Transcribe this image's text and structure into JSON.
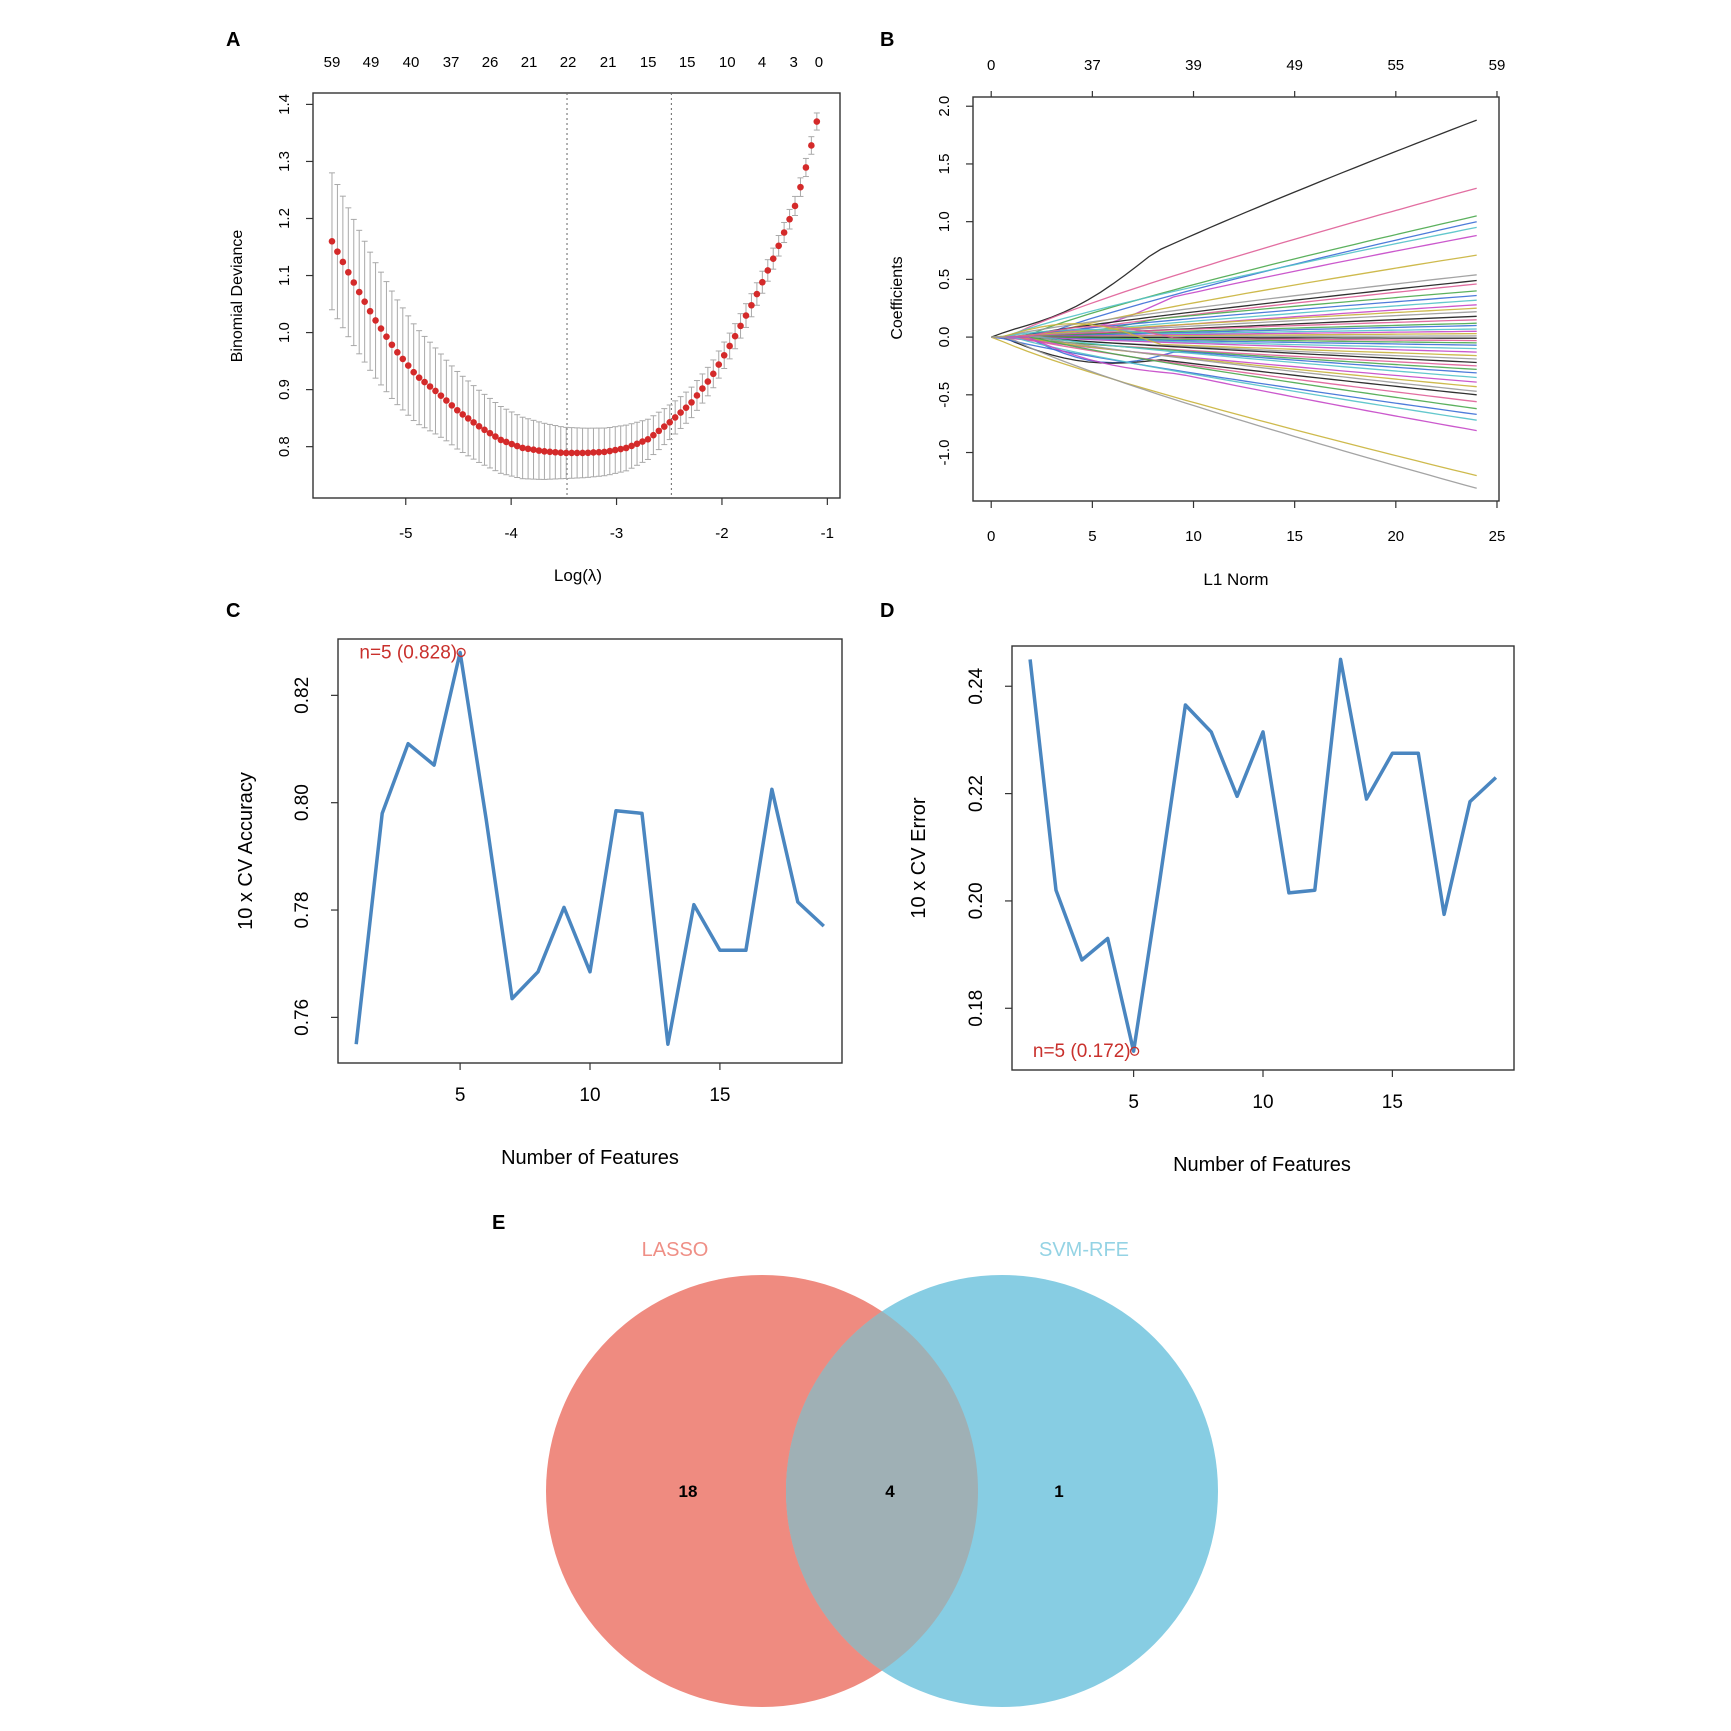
{
  "panel_labels": {
    "A": "A",
    "B": "B",
    "C": "C",
    "D": "D",
    "E": "E"
  },
  "colors": {
    "red_points": "#d42a2a",
    "errbar": "#a9a9a9",
    "blue_line": "#4a86c0",
    "annot_red": "#c9302c",
    "lasso_fill": "#ef8b80",
    "svm_fill": "#87cde3",
    "overlap_fill": "#9fb0b5",
    "lasso_text": "#ef8f86",
    "svm_text": "#94d3e4"
  },
  "chart_data": [
    {
      "id": "A",
      "type": "scatter",
      "title": "",
      "xlabel": "Log(λ)",
      "ylabel": "Binomial Deviance",
      "xlim": [
        -5.88,
        -0.88
      ],
      "ylim": [
        0.71,
        1.42
      ],
      "xticks": [
        -5,
        -4,
        -3,
        -2,
        -1
      ],
      "xtick_labels": [
        "-5",
        "-4",
        "-3",
        "-2",
        "-1"
      ],
      "yticks": [
        0.8,
        0.9,
        1.0,
        1.1,
        1.2,
        1.3,
        1.4
      ],
      "ytick_labels": [
        "0.8",
        "0.9",
        "1.0",
        "1.1",
        "1.2",
        "1.3",
        "1.4"
      ],
      "top_ticks": [
        -5.7,
        -5.33,
        -4.95,
        -4.57,
        -4.2,
        -3.83,
        -3.46,
        -3.08,
        -2.7,
        -2.33,
        -1.95,
        -1.62,
        -1.32,
        -1.08
      ],
      "top_labels": [
        "59",
        "49",
        "40",
        "37",
        "26",
        "21",
        "22",
        "21",
        "15",
        "15",
        "10",
        "4",
        "3",
        "0"
      ],
      "vlines": [
        -3.47,
        -2.48
      ],
      "curve_knots": {
        "x": [
          -5.7,
          -5.5,
          -5.3,
          -5.1,
          -4.9,
          -4.7,
          -4.5,
          -4.3,
          -4.1,
          -3.9,
          -3.7,
          -3.5,
          -3.3,
          -3.1,
          -2.9,
          -2.7,
          -2.5,
          -2.3,
          -2.1,
          -1.9,
          -1.7,
          -1.5,
          -1.3,
          -1.18,
          -1.1
        ],
        "y": [
          1.16,
          1.09,
          1.025,
          0.97,
          0.925,
          0.895,
          0.862,
          0.835,
          0.812,
          0.798,
          0.792,
          0.789,
          0.789,
          0.791,
          0.798,
          0.813,
          0.842,
          0.875,
          0.922,
          0.985,
          1.055,
          1.135,
          1.225,
          1.305,
          1.37
        ]
      },
      "error_half_width": {
        "x": [
          -5.7,
          -4.6,
          -3.5,
          -2.9,
          -2.4,
          -1.7,
          -1.1
        ],
        "y": [
          0.12,
          0.07,
          0.045,
          0.04,
          0.028,
          0.02,
          0.015
        ]
      },
      "n_points": 90
    },
    {
      "id": "B",
      "type": "line",
      "title": "",
      "xlabel": "L1 Norm",
      "ylabel": "Coefficients",
      "xlim": [
        -0.9,
        25.1
      ],
      "ylim": [
        -1.42,
        2.08
      ],
      "xticks": [
        0,
        5,
        10,
        15,
        20,
        25
      ],
      "xtick_labels": [
        "0",
        "5",
        "10",
        "15",
        "20",
        "25"
      ],
      "yticks": [
        -1.0,
        -0.5,
        0.0,
        0.5,
        1.0,
        1.5,
        2.0
      ],
      "ytick_labels": [
        "-1.0",
        "-0.5",
        "0.0",
        "0.5",
        "1.0",
        "1.5",
        "2.0"
      ],
      "top_ticks": [
        0,
        5,
        10,
        15,
        20,
        25
      ],
      "top_labels": [
        "0",
        "37",
        "39",
        "49",
        "55",
        "59"
      ],
      "x_end": 24,
      "palette": [
        "#1b1b1b",
        "#df5e97",
        "#4aa84c",
        "#3b6ed6",
        "#53c2c8",
        "#c547c8",
        "#c9b33a",
        "#9a9a9a"
      ],
      "series_final": [
        1.88,
        1.29,
        1.05,
        1.0,
        0.95,
        0.88,
        0.71,
        0.54,
        0.49,
        0.46,
        0.4,
        0.36,
        0.32,
        0.28,
        0.25,
        0.22,
        0.18,
        0.15,
        0.12,
        0.1,
        0.07,
        0.05,
        0.03,
        0.01,
        -0.01,
        -0.03,
        -0.05,
        -0.07,
        -0.1,
        -0.13,
        -0.16,
        -0.19,
        -0.22,
        -0.25,
        -0.28,
        -0.31,
        -0.35,
        -0.39,
        -0.43,
        -0.47,
        -0.5,
        -0.56,
        -0.62,
        -0.67,
        -0.72,
        -0.81,
        -1.2,
        -1.31
      ]
    },
    {
      "id": "C",
      "type": "line",
      "title": "",
      "xlabel": "Number of Features",
      "ylabel": "10 x CV Accuracy",
      "xlim": [
        0.3,
        19.7
      ],
      "ylim": [
        0.7515,
        0.8305
      ],
      "xticks": [
        5,
        10,
        15
      ],
      "xtick_labels": [
        "5",
        "10",
        "15"
      ],
      "yticks": [
        0.76,
        0.78,
        0.8,
        0.82
      ],
      "ytick_labels": [
        "0.76",
        "0.78",
        "0.80",
        "0.82"
      ],
      "x": [
        1,
        2,
        3,
        4,
        5,
        6,
        7,
        8,
        9,
        10,
        11,
        12,
        13,
        14,
        15,
        16,
        17,
        18,
        19
      ],
      "values": [
        0.755,
        0.798,
        0.811,
        0.807,
        0.828,
        0.797,
        0.7635,
        0.7685,
        0.7805,
        0.7685,
        0.7985,
        0.798,
        0.755,
        0.781,
        0.7725,
        0.7725,
        0.8025,
        0.7815,
        0.777
      ],
      "annotation": {
        "text": "n=5 (0.828)",
        "x": 5,
        "y": 0.828
      }
    },
    {
      "id": "D",
      "type": "line",
      "title": "",
      "xlabel": "Number of Features",
      "ylabel": "10 x CV Error",
      "xlim": [
        0.3,
        19.7
      ],
      "ylim": [
        0.1685,
        0.2475
      ],
      "xticks": [
        5,
        10,
        15
      ],
      "xtick_labels": [
        "5",
        "10",
        "15"
      ],
      "yticks": [
        0.18,
        0.2,
        0.22,
        0.24
      ],
      "ytick_labels": [
        "0.18",
        "0.20",
        "0.22",
        "0.24"
      ],
      "x": [
        1,
        2,
        3,
        4,
        5,
        6,
        7,
        8,
        9,
        10,
        11,
        12,
        13,
        14,
        15,
        16,
        17,
        18,
        19
      ],
      "values": [
        0.245,
        0.202,
        0.189,
        0.193,
        0.172,
        0.2035,
        0.2365,
        0.2315,
        0.2195,
        0.2315,
        0.2015,
        0.202,
        0.245,
        0.219,
        0.2275,
        0.2275,
        0.1975,
        0.2185,
        0.223
      ],
      "annotation": {
        "text": "n=5 (0.172)",
        "x": 5,
        "y": 0.172
      }
    },
    {
      "id": "E",
      "type": "venn",
      "sets": [
        {
          "name": "LASSO",
          "only": 18
        },
        {
          "name": "SVM-RFE",
          "only": 1
        }
      ],
      "labels": {
        "lasso": "LASSO",
        "svm": "SVM-RFE"
      },
      "counts": {
        "lasso_only": "18",
        "overlap": "4",
        "svm_only": "1"
      }
    }
  ]
}
